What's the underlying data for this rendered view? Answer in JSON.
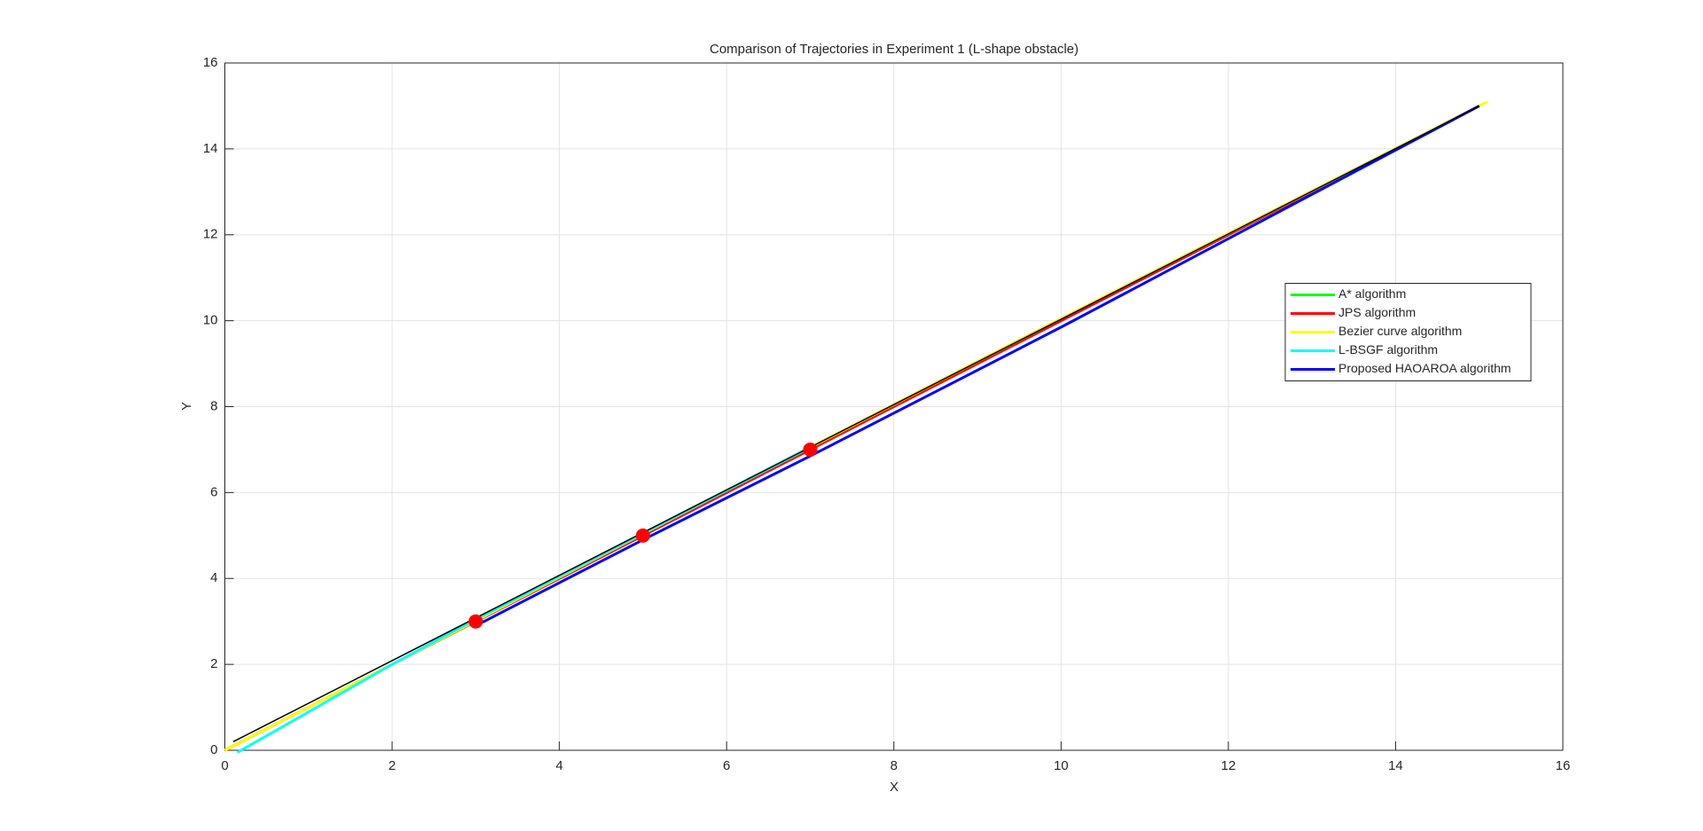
{
  "chart_data": {
    "type": "line",
    "title": "Comparison of Trajectories in Experiment 1 (L-shape obstacle)",
    "x_label": "X",
    "y_label": "Y",
    "xlim": [
      0,
      16
    ],
    "ylim": [
      0,
      16
    ],
    "xticks": [
      0,
      2,
      4,
      6,
      8,
      10,
      12,
      14,
      16
    ],
    "yticks": [
      0,
      2,
      4,
      6,
      8,
      10,
      12,
      14,
      16
    ],
    "grid": true,
    "legend": "east",
    "reference_line": {
      "color": "#000000",
      "x": [
        0.1,
        15
      ],
      "y": [
        0.2,
        15
      ]
    },
    "series": [
      {
        "name": "A* algorithm",
        "color": "#00ff00",
        "x": [
          0,
          15
        ],
        "y": [
          0,
          15
        ]
      },
      {
        "name": "JPS algorithm",
        "color": "#ff0000",
        "x": [
          0,
          3,
          5,
          7,
          15
        ],
        "y": [
          0,
          3,
          5,
          7,
          15
        ]
      },
      {
        "name": "Bezier curve algorithm",
        "color": "#ffff00",
        "x": [
          0,
          2,
          6,
          10,
          15.1
        ],
        "y": [
          0,
          2,
          6.05,
          10.05,
          15.1
        ]
      },
      {
        "name": "L-BSGF algorithm",
        "color": "#00ffff",
        "x": [
          0.15,
          2,
          3,
          5,
          7
        ],
        "y": [
          -0.05,
          2,
          3.05,
          5.05,
          7.05
        ]
      },
      {
        "name": "Proposed HAOAROA algorithm",
        "color": "#0000ff",
        "x": [
          3,
          5,
          7,
          10,
          15
        ],
        "y": [
          2.9,
          4.9,
          6.85,
          9.85,
          15
        ]
      }
    ],
    "markers": {
      "color": "#ff0000",
      "x": [
        3,
        5,
        7
      ],
      "y": [
        3,
        5,
        7
      ]
    }
  }
}
